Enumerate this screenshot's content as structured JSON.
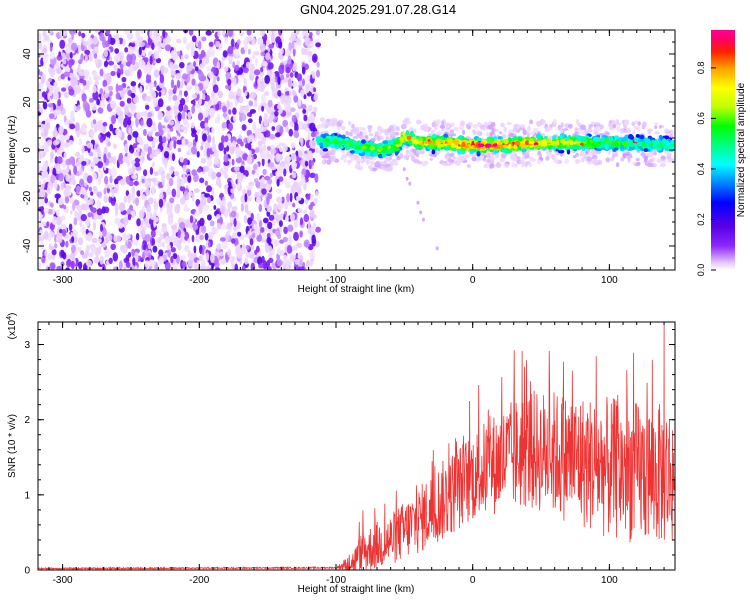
{
  "title": "GN04.2025.291.07.28.G14",
  "chart_data": [
    {
      "type": "heatmap",
      "title": "GN04.2025.291.07.28.G14",
      "xlabel": "Height of straight line (km)",
      "ylabel": "Frequency (Hz)",
      "xlim": [
        -318,
        148
      ],
      "ylim": [
        -50,
        50
      ],
      "x_ticks": [
        -300,
        -200,
        -100,
        0,
        100
      ],
      "y_ticks": [
        -40,
        -20,
        0,
        20,
        40
      ],
      "x_tick_labels": [
        "-300",
        "-200",
        "-100",
        "0",
        "100"
      ],
      "y_tick_labels": [
        "-40",
        "-20",
        "0",
        "20",
        "40"
      ],
      "colorbar": {
        "label": "Normalized spectral amplitude",
        "range": [
          0,
          0.95
        ],
        "ticks": [
          0.0,
          0.2,
          0.4,
          0.6,
          0.8
        ],
        "tick_labels": [
          "0.0",
          "0.2",
          "0.4",
          "0.6",
          "0.8"
        ],
        "colors": [
          "#ffffff",
          "#e6c8ff",
          "#8c28ff",
          "#5a00e6",
          "#0000ff",
          "#0080ff",
          "#00ffff",
          "#00ff80",
          "#00ff00",
          "#c0ff00",
          "#ffff00",
          "#ffa000",
          "#ff2000",
          "#ff0064",
          "#ff0090"
        ]
      },
      "noise_region_x": [
        -318,
        -113
      ],
      "signal_band": {
        "x_range": [
          -113,
          148
        ],
        "center_hz": [
          [
            -113,
            4
          ],
          [
            -95,
            3
          ],
          [
            -80,
            1
          ],
          [
            -65,
            0
          ],
          [
            -55,
            2
          ],
          [
            -50,
            6
          ],
          [
            -40,
            3
          ],
          [
            -20,
            3
          ],
          [
            0,
            2
          ],
          [
            20,
            2
          ],
          [
            50,
            3
          ],
          [
            80,
            3
          ],
          [
            100,
            3
          ],
          [
            148,
            2
          ]
        ],
        "halfwidth_hz": 4,
        "peak_x": 10,
        "peak_amplitude": 0.95
      },
      "stray_points": [
        [
          -40,
          -22
        ],
        [
          -38,
          -26
        ],
        [
          -36,
          -29
        ],
        [
          -26,
          -41
        ],
        [
          -48,
          -12
        ],
        [
          -46,
          -14
        ],
        [
          -50,
          -8
        ]
      ]
    },
    {
      "type": "line",
      "xlabel": "Height of straight line (km)",
      "ylabel": "SNR (10 * v/v)",
      "y_scale_label_base": "(x10",
      "y_scale_label_exp": "4",
      "y_scale_label_end": ")",
      "xlim": [
        -318,
        148
      ],
      "ylim": [
        0,
        3.3
      ],
      "x_ticks": [
        -300,
        -200,
        -100,
        0,
        100
      ],
      "y_ticks": [
        0,
        1,
        2,
        3
      ],
      "x_tick_labels": [
        "-300",
        "-200",
        "-100",
        "0",
        "100"
      ],
      "y_tick_labels": [
        "0",
        "1",
        "2",
        "3"
      ],
      "series": [
        {
          "name": "SNR",
          "color": "#ee3333",
          "envelope_x": [
            -318,
            -100,
            -88,
            -80,
            -60,
            -40,
            -20,
            0,
            20,
            40,
            60,
            80,
            100,
            120,
            148
          ],
          "envelope_mean": [
            0.02,
            0.03,
            0.1,
            0.25,
            0.4,
            0.65,
            0.95,
            1.25,
            1.45,
            1.6,
            1.55,
            1.45,
            1.35,
            1.3,
            1.25
          ],
          "envelope_amp": [
            0.01,
            0.01,
            0.15,
            0.3,
            0.35,
            0.45,
            0.55,
            0.6,
            0.7,
            0.8,
            0.85,
            0.9,
            0.95,
            0.95,
            0.95
          ],
          "max_value": 3.3,
          "max_at_x": 140
        }
      ]
    }
  ]
}
